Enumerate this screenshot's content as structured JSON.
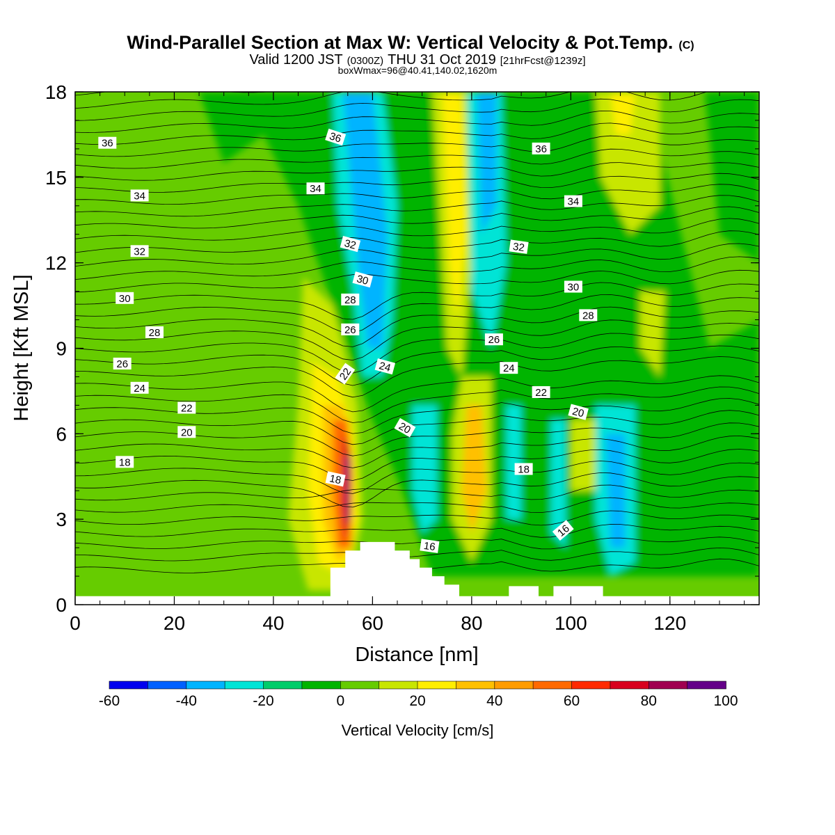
{
  "chart_data": {
    "type": "heatmap",
    "title": "Wind-Parallel Section at Max W: Vertical Velocity & Pot.Temp.",
    "title_mark": "(C)",
    "subtitle_parts": [
      "Valid 1200 JST",
      "(0300Z)",
      "THU 31 Oct 2019",
      "[21hrFcst@1239z]"
    ],
    "subtitle2": "boxWmax=96@40.41,140.02,1620m",
    "xlabel": "Distance [nm]",
    "ylabel": "Height [Kft MSL]",
    "xlim": [
      0,
      138
    ],
    "ylim": [
      0,
      18
    ],
    "x_ticks": [
      "0",
      "20",
      "40",
      "60",
      "80",
      "100",
      "120"
    ],
    "y_ticks": [
      "0",
      "3",
      "6",
      "9",
      "12",
      "15",
      "18"
    ],
    "grid": false,
    "colorbar": {
      "label": "Vertical Velocity [cm/s]",
      "placement": "bottom",
      "range": [
        -60,
        100
      ],
      "step": 10,
      "tick_labels": [
        "-60",
        "-40",
        "-20",
        "0",
        "20",
        "40",
        "60",
        "80",
        "100"
      ],
      "colors": [
        "#0000ee",
        "#0060ff",
        "#00b4ff",
        "#00e4d6",
        "#00cc6a",
        "#00b400",
        "#66cc00",
        "#c8e600",
        "#ffee00",
        "#ffc000",
        "#ff9c00",
        "#ff6a00",
        "#ff2a00",
        "#d8001e",
        "#a00050",
        "#640088"
      ]
    },
    "contour_label_values": [
      "16",
      "18",
      "20",
      "22",
      "24",
      "26",
      "28",
      "30",
      "32",
      "34",
      "36"
    ],
    "contour_labels": [
      {
        "text": "36",
        "x": 6.5,
        "y": 16.2,
        "angle": 0
      },
      {
        "text": "34",
        "x": 13,
        "y": 14.35,
        "angle": 0
      },
      {
        "text": "32",
        "x": 13,
        "y": 12.4,
        "angle": 0
      },
      {
        "text": "30",
        "x": 10,
        "y": 10.75,
        "angle": 0
      },
      {
        "text": "28",
        "x": 16,
        "y": 9.55,
        "angle": 0
      },
      {
        "text": "26",
        "x": 9.5,
        "y": 8.45,
        "angle": 0
      },
      {
        "text": "24",
        "x": 13,
        "y": 7.6,
        "angle": 0
      },
      {
        "text": "22",
        "x": 22.5,
        "y": 6.9,
        "angle": 0
      },
      {
        "text": "20",
        "x": 22.5,
        "y": 6.05,
        "angle": 0
      },
      {
        "text": "18",
        "x": 10,
        "y": 5.0,
        "angle": 0
      },
      {
        "text": "36",
        "x": 52.5,
        "y": 16.4,
        "angle": 18
      },
      {
        "text": "34",
        "x": 48.5,
        "y": 14.6,
        "angle": 0
      },
      {
        "text": "32",
        "x": 55.5,
        "y": 12.65,
        "angle": 15
      },
      {
        "text": "30",
        "x": 58,
        "y": 11.4,
        "angle": 15
      },
      {
        "text": "28",
        "x": 55.5,
        "y": 10.7,
        "angle": 0
      },
      {
        "text": "26",
        "x": 55.5,
        "y": 9.65,
        "angle": 0
      },
      {
        "text": "24",
        "x": 62.5,
        "y": 8.35,
        "angle": 15
      },
      {
        "text": "22",
        "x": 54.5,
        "y": 8.1,
        "angle": -55
      },
      {
        "text": "20",
        "x": 66.5,
        "y": 6.2,
        "angle": 30
      },
      {
        "text": "18",
        "x": 52.5,
        "y": 4.4,
        "angle": 12
      },
      {
        "text": "16",
        "x": 71.5,
        "y": 2.05,
        "angle": 8
      },
      {
        "text": "36",
        "x": 94,
        "y": 16.0,
        "angle": 0
      },
      {
        "text": "34",
        "x": 100.5,
        "y": 14.15,
        "angle": 0
      },
      {
        "text": "32",
        "x": 89.5,
        "y": 12.55,
        "angle": 8
      },
      {
        "text": "30",
        "x": 100.5,
        "y": 11.15,
        "angle": 0
      },
      {
        "text": "28",
        "x": 103.5,
        "y": 10.15,
        "angle": 0
      },
      {
        "text": "26",
        "x": 84.5,
        "y": 9.3,
        "angle": 0
      },
      {
        "text": "24",
        "x": 87.5,
        "y": 8.3,
        "angle": 0
      },
      {
        "text": "22",
        "x": 94,
        "y": 7.45,
        "angle": 0
      },
      {
        "text": "20",
        "x": 101.5,
        "y": 6.75,
        "angle": 15
      },
      {
        "text": "18",
        "x": 90.5,
        "y": 4.75,
        "angle": 0
      },
      {
        "text": "16",
        "x": 98.5,
        "y": 2.6,
        "angle": -40
      }
    ],
    "terrain_profile": {
      "x": [
        0,
        51.5,
        51.5,
        54.5,
        54.5,
        57.5,
        57.5,
        64.5,
        64.5,
        67.5,
        67.5,
        69.5,
        69.5,
        72,
        72,
        74.5,
        74.5,
        77.5,
        77.5,
        87.5,
        87.5,
        93.5,
        93.5,
        96.5,
        96.5,
        106.5,
        106.5,
        138
      ],
      "y": [
        0.3,
        0.3,
        1.3,
        1.3,
        1.9,
        1.9,
        2.2,
        2.2,
        1.9,
        1.9,
        1.6,
        1.6,
        1.3,
        1.3,
        1.0,
        1.0,
        0.7,
        0.7,
        0.3,
        0.3,
        0.65,
        0.65,
        0.3,
        0.3,
        0.65,
        0.65,
        0.3,
        0.3
      ]
    }
  }
}
